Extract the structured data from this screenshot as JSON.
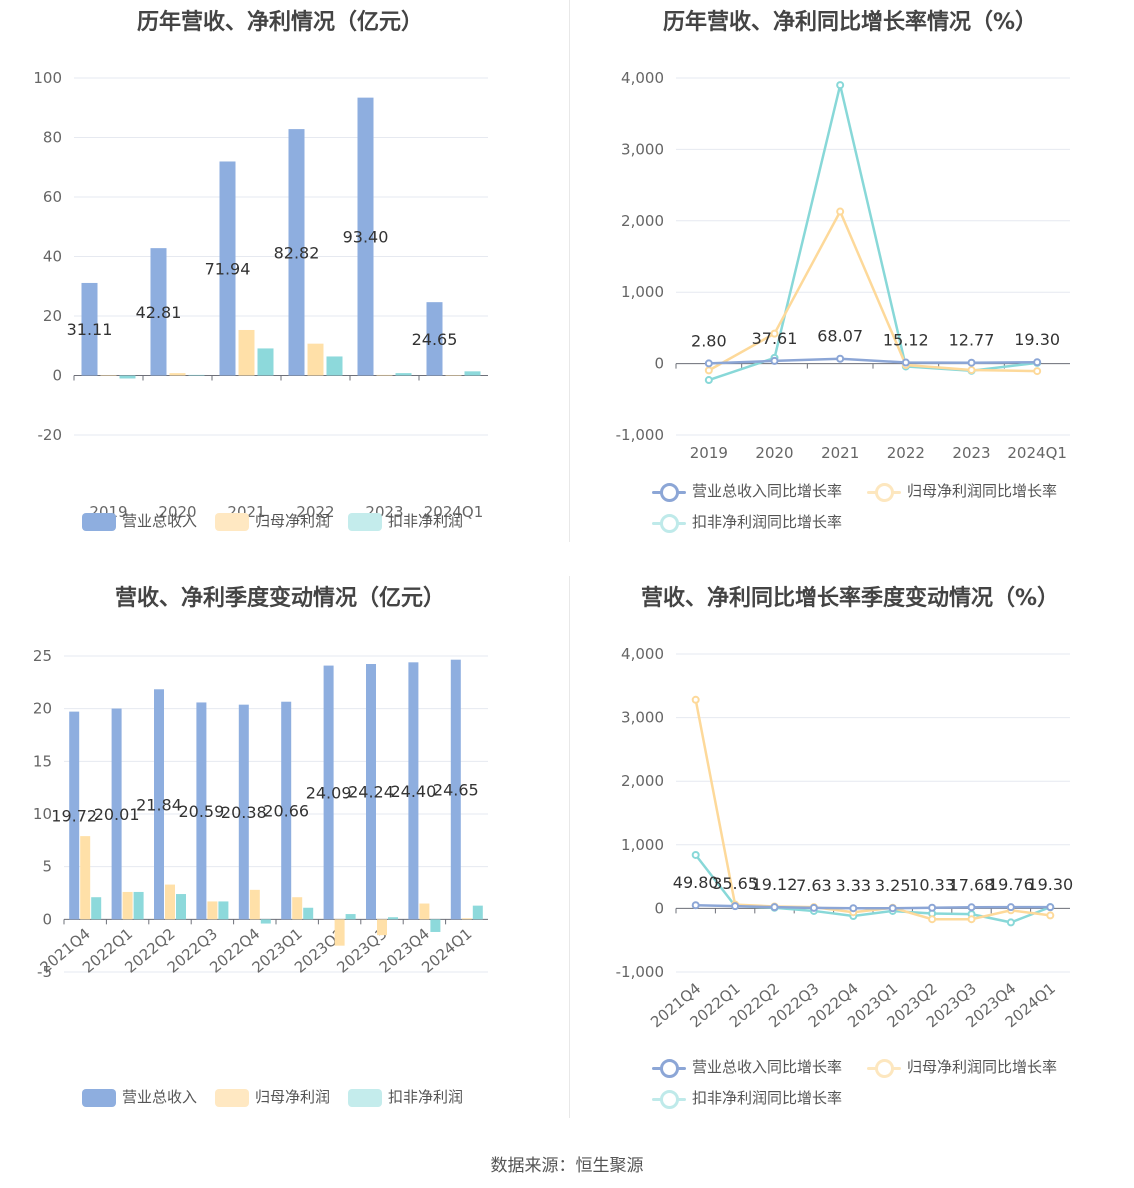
{
  "source": "数据来源：恒生聚源",
  "colors": {
    "revenue": "#8eaedf",
    "net": "#ffe0a8",
    "deducted": "#8dd9db",
    "revenue_line": "#8ca6d6",
    "net_line": "#fdd99a",
    "deducted_line": "#88d8d8"
  },
  "legend_labels": {
    "revenue": "营业总收入",
    "net": "归母净利润",
    "deducted": "扣非净利润",
    "revenue_growth": "营业总收入同比增长率",
    "net_growth": "归母净利润同比增长率",
    "deducted_growth": "扣非净利润同比增长率"
  },
  "chart_data": [
    {
      "type": "bar",
      "title": "历年营收、净利情况（亿元）",
      "categories": [
        "2019",
        "2020",
        "2021",
        "2022",
        "2023",
        "2024Q1"
      ],
      "ylim": [
        -20,
        100
      ],
      "yticks": [
        -20,
        0,
        20,
        40,
        60,
        80,
        100
      ],
      "series": [
        {
          "name": "营业总收入",
          "values": [
            31.11,
            42.81,
            71.94,
            82.82,
            93.4,
            24.65
          ],
          "labels": [
            "31.11",
            "42.81",
            "71.94",
            "82.82",
            "93.40",
            "24.65"
          ]
        },
        {
          "name": "归母净利润",
          "values": [
            0.1,
            0.8,
            15.3,
            10.7,
            0.2,
            0.1
          ]
        },
        {
          "name": "扣非净利润",
          "values": [
            -1.0,
            0.2,
            9.1,
            6.4,
            0.8,
            1.4
          ]
        }
      ],
      "legend": "bottom",
      "grid": true
    },
    {
      "type": "line",
      "title": "历年营收、净利同比增长率情况（%）",
      "categories": [
        "2019",
        "2020",
        "2021",
        "2022",
        "2023",
        "2024Q1"
      ],
      "ylim": [
        -1000,
        4000
      ],
      "yticks": [
        "-1,000",
        "0",
        "1,000",
        "2,000",
        "3,000",
        "4,000"
      ],
      "series": [
        {
          "name": "营业总收入同比增长率",
          "values": [
            2.8,
            37.61,
            68.07,
            15.12,
            12.77,
            19.3
          ],
          "labels": [
            "2.80",
            "37.61",
            "68.07",
            "15.12",
            "12.77",
            "19.30"
          ]
        },
        {
          "name": "归母净利润同比增长率",
          "values": [
            -95,
            420,
            2130,
            -20,
            -90,
            -105
          ]
        },
        {
          "name": "扣非净利润同比增长率",
          "values": [
            -230,
            80,
            3900,
            -40,
            -100,
            10
          ]
        }
      ],
      "legend": "bottom",
      "grid": true
    },
    {
      "type": "bar",
      "title": "营收、净利季度变动情况（亿元）",
      "categories": [
        "2021Q4",
        "2022Q1",
        "2022Q2",
        "2022Q3",
        "2022Q4",
        "2023Q1",
        "2023Q2",
        "2023Q3",
        "2023Q4",
        "2024Q1"
      ],
      "ylim": [
        -5,
        25
      ],
      "yticks": [
        -5,
        0,
        5,
        10,
        15,
        20,
        25
      ],
      "series": [
        {
          "name": "营业总收入",
          "values": [
            19.72,
            20.01,
            21.84,
            20.59,
            20.38,
            20.66,
            24.09,
            24.24,
            24.4,
            24.65
          ],
          "labels": [
            "19.72",
            "20.01",
            "21.84",
            "20.59",
            "20.38",
            "20.66",
            "24.09",
            "24.24",
            "24.40",
            "24.65"
          ]
        },
        {
          "name": "归母净利润",
          "values": [
            7.9,
            2.6,
            3.3,
            1.7,
            2.8,
            2.1,
            -2.5,
            -1.5,
            1.5,
            0.1
          ]
        },
        {
          "name": "扣非净利润",
          "values": [
            2.1,
            2.6,
            2.4,
            1.7,
            -0.4,
            1.1,
            0.5,
            0.2,
            -1.2,
            1.3
          ]
        }
      ],
      "legend": "bottom",
      "grid": true
    },
    {
      "type": "line",
      "title": "营收、净利同比增长率季度变动情况（%）",
      "categories": [
        "2021Q4",
        "2022Q1",
        "2022Q2",
        "2022Q3",
        "2022Q4",
        "2023Q1",
        "2023Q2",
        "2023Q3",
        "2023Q4",
        "2024Q1"
      ],
      "ylim": [
        -1000,
        4000
      ],
      "yticks": [
        "-1,000",
        "0",
        "1,000",
        "2,000",
        "3,000",
        "4,000"
      ],
      "series": [
        {
          "name": "营业总收入同比增长率",
          "values": [
            49.8,
            35.65,
            19.12,
            7.63,
            3.33,
            3.25,
            10.33,
            17.68,
            19.76,
            19.3
          ],
          "labels": [
            "49.80",
            "35.65",
            "19.12",
            "7.63",
            "3.33",
            "3.25",
            "10.33",
            "17.68",
            "19.76",
            "19.30"
          ]
        },
        {
          "name": "归母净利润同比增长率",
          "values": [
            3280,
            60,
            30,
            20,
            -60,
            10,
            -170,
            -170,
            -30,
            -110
          ]
        },
        {
          "name": "扣非净利润同比增长率",
          "values": [
            840,
            40,
            10,
            -40,
            -120,
            -40,
            -80,
            -90,
            -220,
            20
          ]
        }
      ],
      "legend": "bottom",
      "grid": true
    }
  ]
}
